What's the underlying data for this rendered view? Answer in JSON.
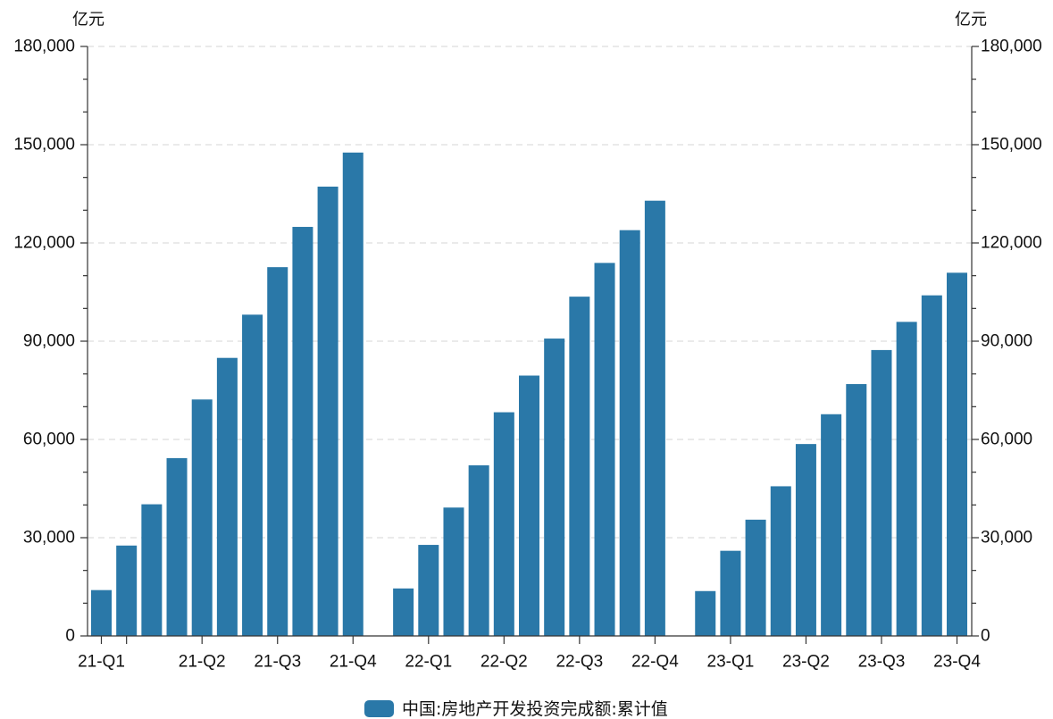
{
  "chart_data": {
    "type": "bar",
    "dual_y_axis": true,
    "y_unit_left": "亿元",
    "y_unit_right": "亿元",
    "ylim": [
      0,
      180000
    ],
    "y_major_step": 30000,
    "y_minor_step": 10000,
    "y_tick_labels": [
      "0",
      "30,000",
      "60,000",
      "90,000",
      "120,000",
      "150,000",
      "180,000"
    ],
    "grid": true,
    "legend_position": "bottom",
    "x": [
      "2021-02",
      "2021-03",
      "2021-04",
      "2021-05",
      "2021-06",
      "2021-07",
      "2021-08",
      "2021-09",
      "2021-10",
      "2021-11",
      "2021-12",
      "2022-02",
      "2022-03",
      "2022-04",
      "2022-05",
      "2022-06",
      "2022-07",
      "2022-08",
      "2022-09",
      "2022-10",
      "2022-11",
      "2022-12",
      "2023-02",
      "2023-03",
      "2023-04",
      "2023-05",
      "2023-06",
      "2023-07",
      "2023-08",
      "2023-09",
      "2023-10",
      "2023-11",
      "2023-12"
    ],
    "x_ticks": [
      "2021-02",
      "2021-03",
      "2021-06",
      "2021-09",
      "2021-12",
      "2022-03",
      "2022-06",
      "2022-09",
      "2022-12",
      "2023-03",
      "2023-06",
      "2023-09",
      "2023-12"
    ],
    "x_tick_labels": [
      {
        "x": "2021-02",
        "text": "21-Q1"
      },
      {
        "x": "2021-06",
        "text": "21-Q2"
      },
      {
        "x": "2021-09",
        "text": "21-Q3"
      },
      {
        "x": "2021-12",
        "text": "21-Q4"
      },
      {
        "x": "2022-03",
        "text": "22-Q1"
      },
      {
        "x": "2022-06",
        "text": "22-Q2"
      },
      {
        "x": "2022-09",
        "text": "22-Q3"
      },
      {
        "x": "2022-12",
        "text": "22-Q4"
      },
      {
        "x": "2023-03",
        "text": "23-Q1"
      },
      {
        "x": "2023-06",
        "text": "23-Q2"
      },
      {
        "x": "2023-09",
        "text": "23-Q3"
      },
      {
        "x": "2023-12",
        "text": "23-Q4"
      }
    ],
    "series": [
      {
        "name": "中国:房地产开发投资完成额:累计值",
        "color": "#2a78a8",
        "values": [
          14000,
          27600,
          40200,
          54300,
          72200,
          84900,
          98100,
          112600,
          124900,
          137200,
          147600,
          14500,
          27800,
          39200,
          52100,
          68300,
          79500,
          90800,
          103600,
          113900,
          123900,
          132900,
          13700,
          26000,
          35500,
          45700,
          58600,
          67700,
          76900,
          87300,
          95900,
          104000,
          110900
        ]
      }
    ]
  }
}
